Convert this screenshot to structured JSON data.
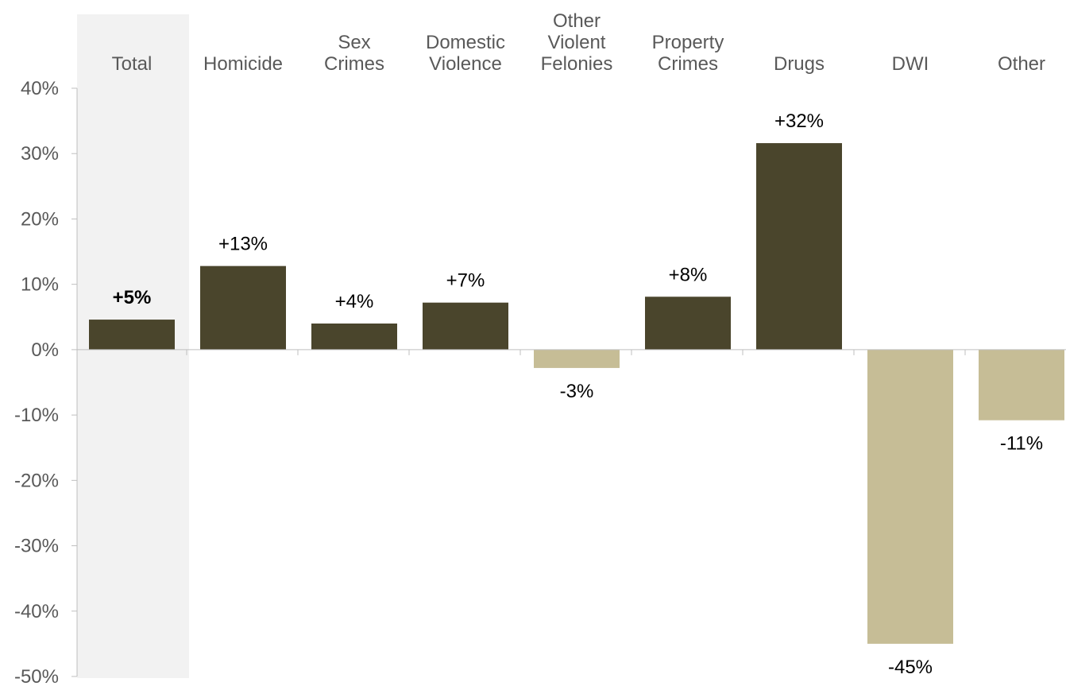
{
  "chart_data": {
    "type": "bar",
    "categories": [
      [
        "Total"
      ],
      [
        "Homicide"
      ],
      [
        "Sex",
        "Crimes"
      ],
      [
        "Domestic",
        "Violence"
      ],
      [
        "Other",
        "Violent",
        "Felonies"
      ],
      [
        "Property",
        "Crimes"
      ],
      [
        "Drugs"
      ],
      [
        "DWI"
      ],
      [
        "Other"
      ]
    ],
    "values": [
      4.6,
      12.8,
      4.0,
      7.2,
      -2.8,
      8.1,
      31.6,
      -45.0,
      -10.8
    ],
    "data_labels": [
      "+5%",
      "+13%",
      "+4%",
      "+7%",
      "-3%",
      "+8%",
      "+32%",
      "-45%",
      "-11%"
    ],
    "y_ticks": [
      "40%",
      "30%",
      "20%",
      "10%",
      "0%",
      "-10%",
      "-20%",
      "-30%",
      "-40%",
      "-50%"
    ],
    "ylim": [
      -50,
      40
    ],
    "highlighted_category": "Total",
    "colors": {
      "positive": "#4A452C",
      "negative": "#C6BD96",
      "highlight_band": "#F2F2F2",
      "axis": "#BFBFBF",
      "text": "#595959"
    }
  }
}
